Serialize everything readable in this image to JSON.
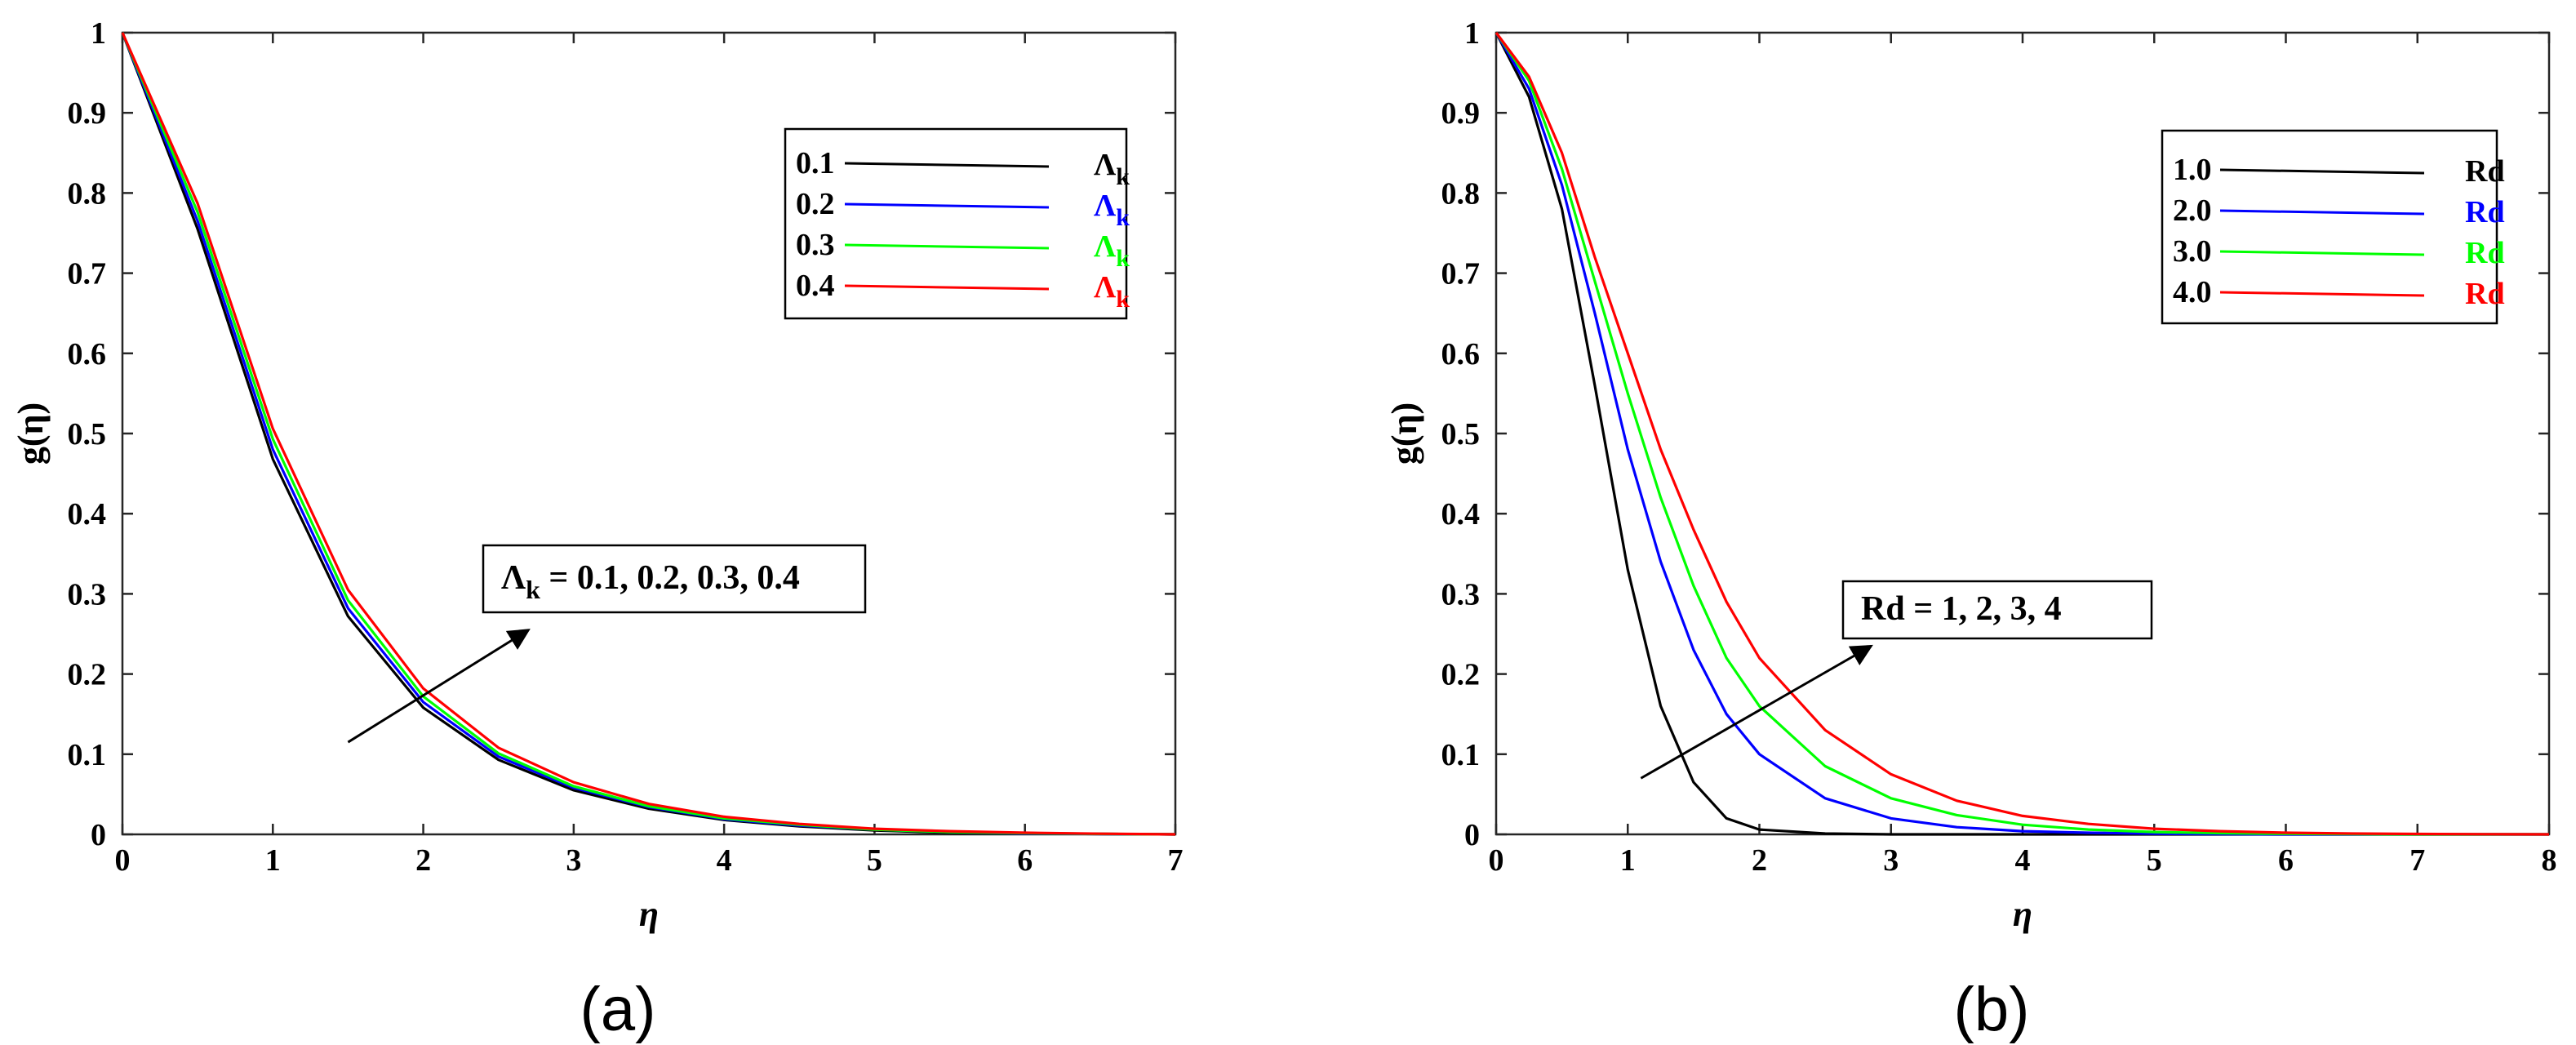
{
  "figure": {
    "labels": [
      "(a)",
      "(b)"
    ]
  },
  "chart_data": [
    {
      "type": "line",
      "panel_label": "(a)",
      "xlabel": "η",
      "ylabel": "g(η)",
      "xlim": [
        0,
        7
      ],
      "ylim": [
        0,
        1
      ],
      "xticks": [
        0,
        1,
        2,
        3,
        4,
        5,
        6,
        7
      ],
      "yticks": [
        0,
        0.1,
        0.2,
        0.3,
        0.4,
        0.5,
        0.6,
        0.7,
        0.8,
        0.9,
        1
      ],
      "grid": false,
      "legend_position": "top-right",
      "x": [
        0,
        0.5,
        1,
        1.5,
        2,
        2.5,
        3,
        3.5,
        4,
        4.5,
        5,
        5.5,
        6,
        6.5,
        7
      ],
      "series": [
        {
          "name": "0.1",
          "legend_symbol": "Λ",
          "legend_sub": "k",
          "color": "#000000",
          "values": [
            1.0,
            0.755,
            0.468,
            0.272,
            0.158,
            0.093,
            0.055,
            0.032,
            0.018,
            0.01,
            0.005,
            0.002,
            0.001,
            0.0005,
            0.0
          ]
        },
        {
          "name": "0.2",
          "legend_symbol": "Λ",
          "legend_sub": "k",
          "color": "#0000ff",
          "values": [
            1.0,
            0.765,
            0.48,
            0.282,
            0.165,
            0.097,
            0.058,
            0.034,
            0.019,
            0.011,
            0.006,
            0.003,
            0.001,
            0.0005,
            0.0
          ]
        },
        {
          "name": "0.3",
          "legend_symbol": "Λ",
          "legend_sub": "k",
          "color": "#00ff00",
          "values": [
            1.0,
            0.776,
            0.493,
            0.292,
            0.172,
            0.101,
            0.06,
            0.035,
            0.02,
            0.012,
            0.006,
            0.003,
            0.0015,
            0.0006,
            0.0
          ]
        },
        {
          "name": "0.4",
          "legend_symbol": "Λ",
          "legend_sub": "k",
          "color": "#ff0000",
          "values": [
            1.0,
            0.787,
            0.506,
            0.305,
            0.182,
            0.108,
            0.065,
            0.038,
            0.022,
            0.013,
            0.007,
            0.004,
            0.002,
            0.0008,
            0.0
          ]
        }
      ],
      "annotation": {
        "symbol": "Λ",
        "sub": "k",
        "text": " = 0.1, 0.2, 0.3, 0.4",
        "arrow_from": [
          1.5,
          0.115
        ],
        "arrow_to": [
          2.7,
          0.255
        ]
      }
    },
    {
      "type": "line",
      "panel_label": "(b)",
      "xlabel": "η",
      "ylabel": "g(η)",
      "xlim": [
        0,
        8
      ],
      "ylim": [
        0,
        1
      ],
      "xticks": [
        0,
        1,
        2,
        3,
        4,
        5,
        6,
        7,
        8
      ],
      "yticks": [
        0,
        0.1,
        0.2,
        0.3,
        0.4,
        0.5,
        0.6,
        0.7,
        0.8,
        0.9,
        1
      ],
      "grid": false,
      "legend_position": "top-right",
      "x": [
        0,
        0.25,
        0.5,
        0.75,
        1,
        1.25,
        1.5,
        1.75,
        2,
        2.5,
        3,
        3.5,
        4,
        4.5,
        5,
        5.5,
        6,
        6.5,
        7,
        7.5,
        8
      ],
      "series": [
        {
          "name": "1.0",
          "legend_symbol": "Rd",
          "color": "#000000",
          "values": [
            1.0,
            0.92,
            0.78,
            0.56,
            0.33,
            0.16,
            0.065,
            0.02,
            0.006,
            0.001,
            0.0,
            0.0,
            0.0,
            0.0,
            0.0,
            0.0,
            0.0,
            0.0,
            0.0,
            0.0,
            0.0
          ]
        },
        {
          "name": "2.0",
          "legend_symbol": "Rd",
          "color": "#0000ff",
          "values": [
            1.0,
            0.93,
            0.81,
            0.65,
            0.48,
            0.34,
            0.23,
            0.15,
            0.1,
            0.045,
            0.02,
            0.009,
            0.004,
            0.002,
            0.0008,
            0.0003,
            0.0,
            0.0,
            0.0,
            0.0,
            0.0
          ]
        },
        {
          "name": "3.0",
          "legend_symbol": "Rd",
          "color": "#00ff00",
          "values": [
            1.0,
            0.94,
            0.83,
            0.69,
            0.55,
            0.42,
            0.31,
            0.22,
            0.16,
            0.085,
            0.045,
            0.024,
            0.012,
            0.006,
            0.003,
            0.0015,
            0.0007,
            0.0003,
            0.0,
            0.0,
            0.0
          ]
        },
        {
          "name": "4.0",
          "legend_symbol": "Rd",
          "color": "#ff0000",
          "values": [
            1.0,
            0.945,
            0.85,
            0.72,
            0.6,
            0.48,
            0.38,
            0.29,
            0.22,
            0.13,
            0.075,
            0.042,
            0.023,
            0.013,
            0.007,
            0.004,
            0.002,
            0.001,
            0.0005,
            0.0002,
            0.0
          ]
        }
      ],
      "annotation": {
        "symbol": "",
        "sub": "",
        "text": "Rd = 1, 2, 3, 4",
        "arrow_from": [
          1.1,
          0.07
        ],
        "arrow_to": [
          2.85,
          0.235
        ]
      }
    }
  ]
}
